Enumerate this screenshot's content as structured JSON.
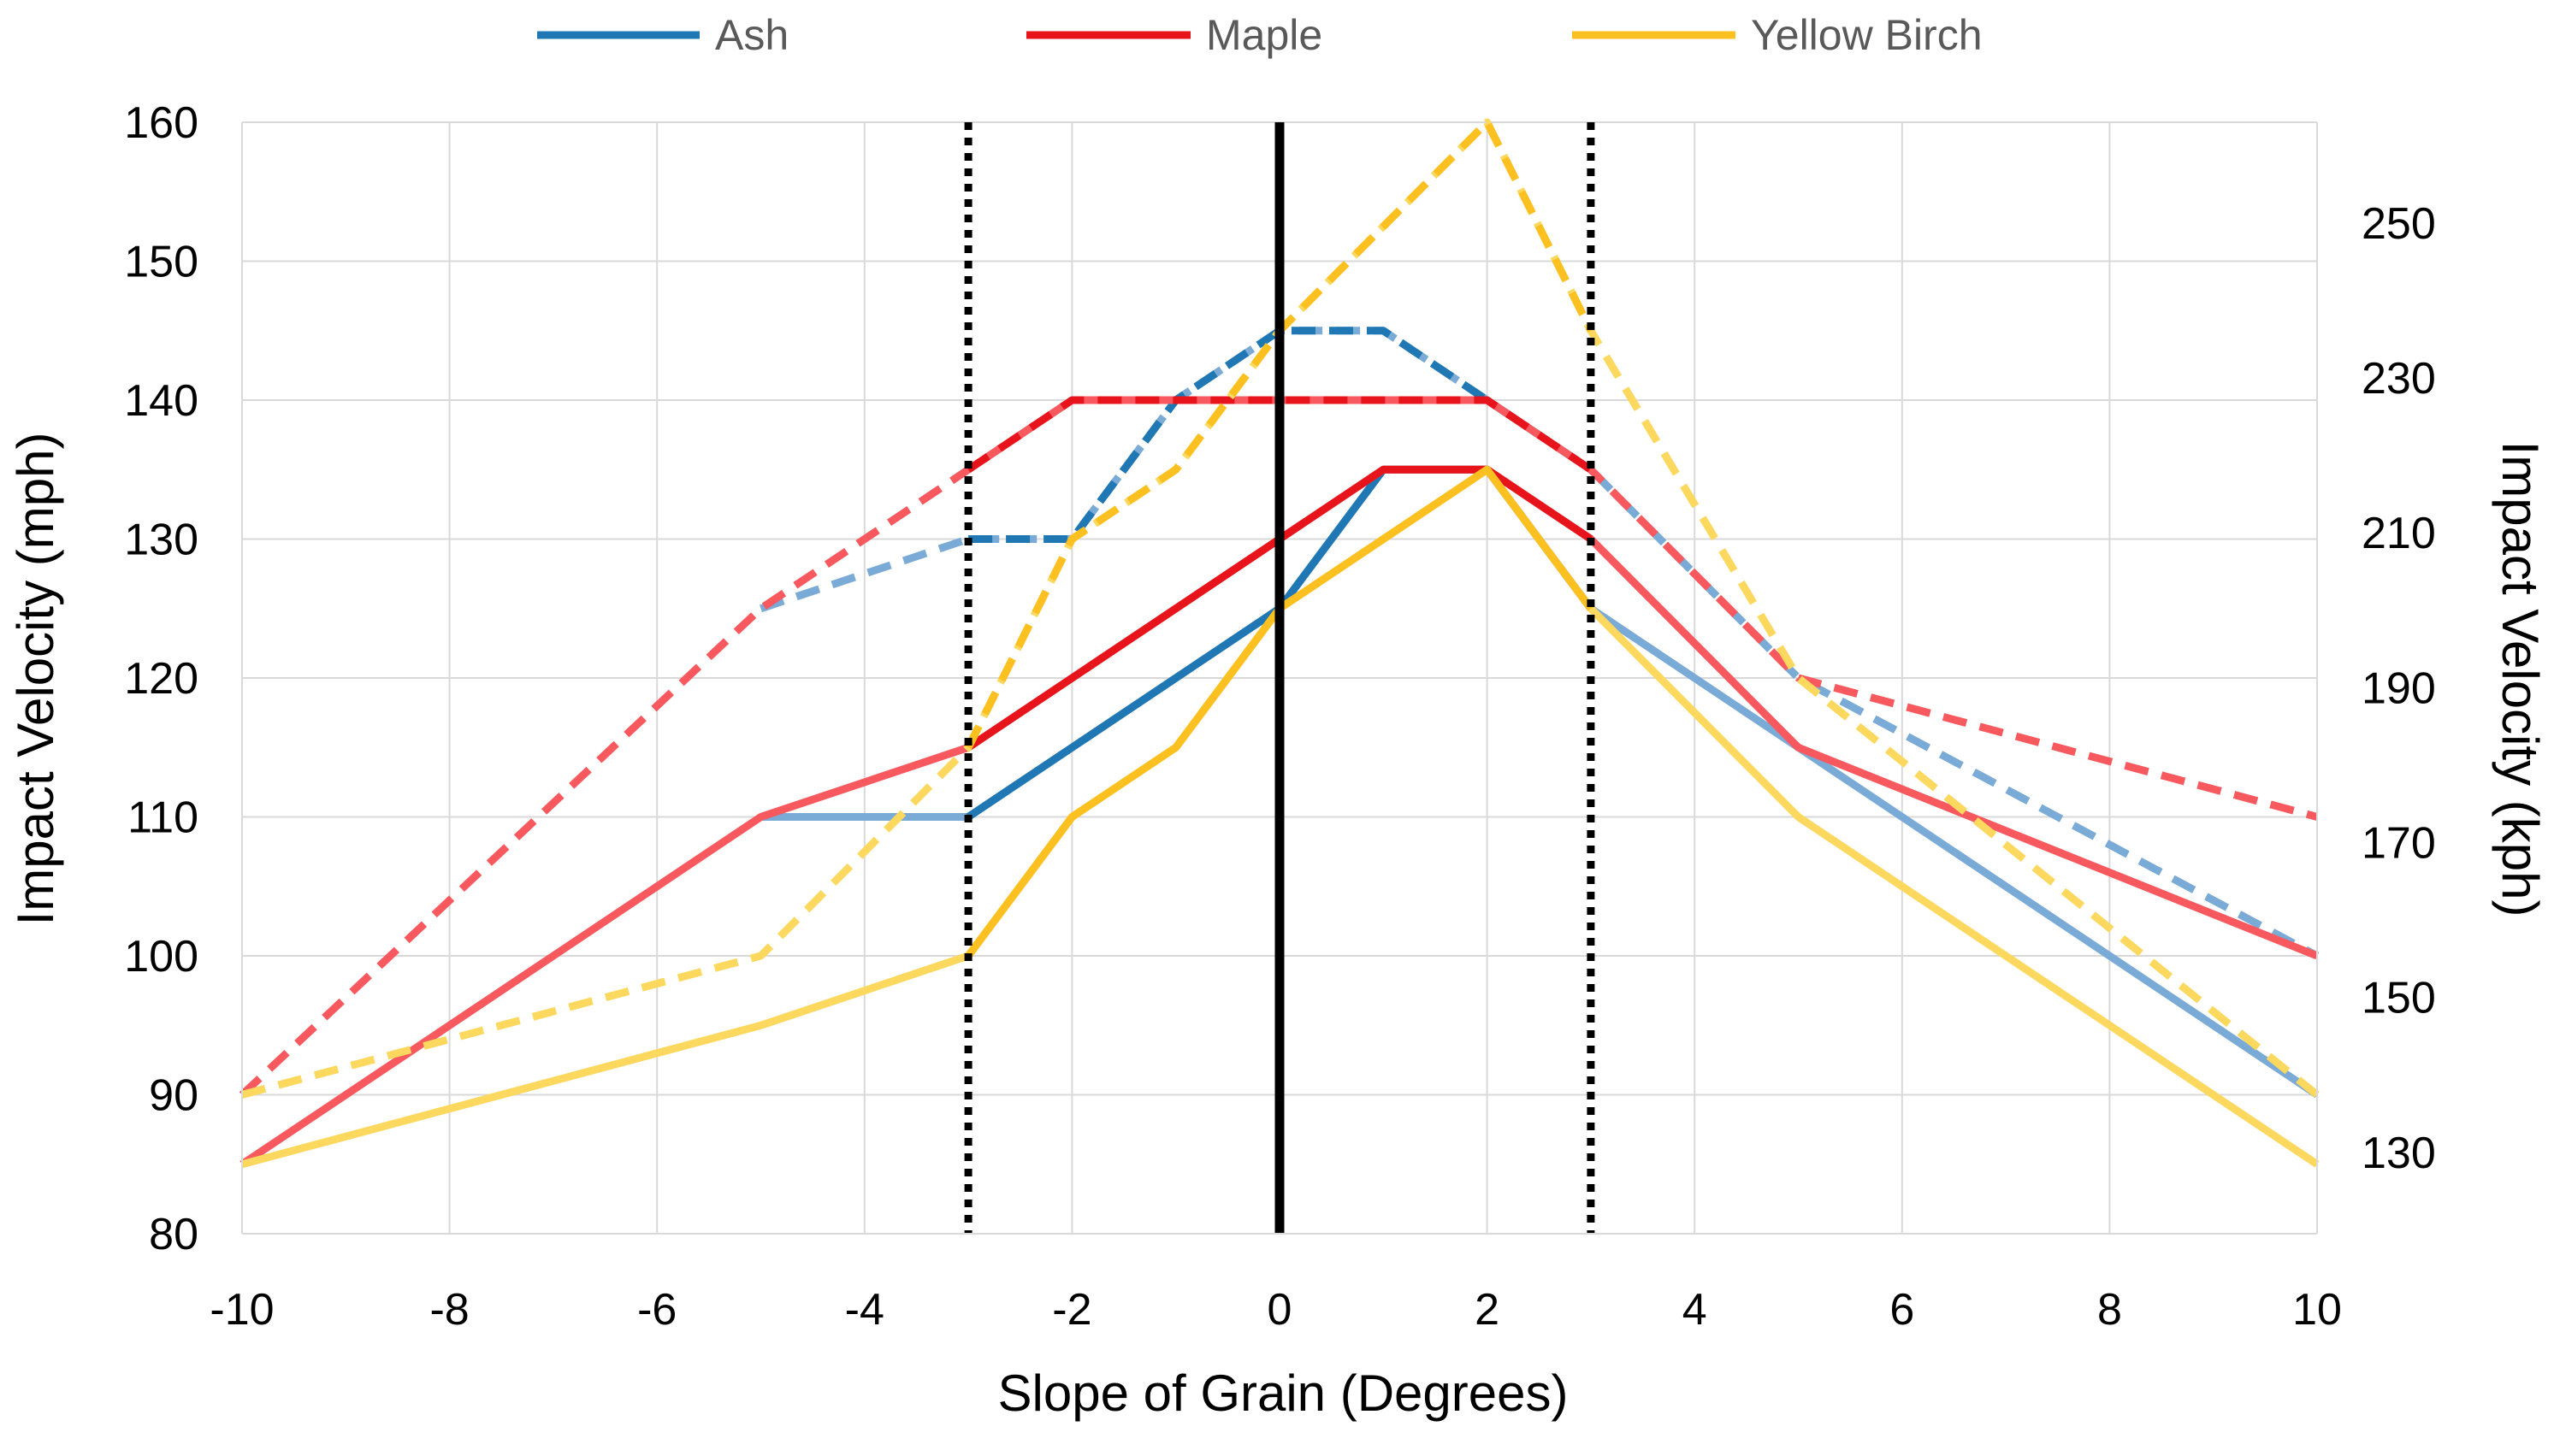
{
  "chart_data": {
    "type": "line",
    "title": "",
    "xlabel": "Slope of Grain (Degrees)",
    "ylabel": "Impact Velocity (mph)",
    "y2label": "Impact Velocity (kph)",
    "xlim": [
      -10,
      10
    ],
    "ylim": [
      80,
      160
    ],
    "y2lim": [
      119.5,
      263
    ],
    "x_ticks": [
      -10,
      -8,
      -6,
      -4,
      -2,
      0,
      2,
      4,
      6,
      8,
      10
    ],
    "x_tick_labels": [
      "-10",
      "-8",
      "-6",
      "-4",
      "-2",
      "0",
      "2",
      "4",
      "6",
      "8",
      "10"
    ],
    "y_ticks": [
      80,
      90,
      100,
      110,
      120,
      130,
      140,
      150,
      160
    ],
    "y_tick_labels": [
      "80",
      "90",
      "100",
      "110",
      "120",
      "130",
      "140",
      "150",
      "160"
    ],
    "y2_ticks": [
      130,
      150,
      170,
      190,
      210,
      230,
      250
    ],
    "y2_tick_labels": [
      "130",
      "150",
      "170",
      "190",
      "210",
      "230",
      "250"
    ],
    "grid": true,
    "legend_position": "top",
    "legend": [
      {
        "name": "Ash",
        "color": "#1f77b4"
      },
      {
        "name": "Maple",
        "color": "#e8141c"
      },
      {
        "name": "Yellow Birch",
        "color": "#fcc020"
      }
    ],
    "reference_lines": [
      {
        "x": -3,
        "style": "dotted",
        "color": "#000000"
      },
      {
        "x": 0,
        "style": "solid",
        "color": "#000000"
      },
      {
        "x": 3,
        "style": "dotted",
        "color": "#000000"
      }
    ],
    "series": [
      {
        "name": "Ash",
        "line": "solid",
        "color": "#1f77b4",
        "light_color": "#7aaad6",
        "x": [
          -5,
          -3,
          0,
          1,
          2,
          3,
          5,
          10
        ],
        "values": [
          110,
          110,
          125,
          135,
          135,
          125,
          115,
          90
        ]
      },
      {
        "name": "Ash",
        "line": "dashed",
        "color": "#1f77b4",
        "light_color": "#7aaad6",
        "x": [
          -5,
          -3,
          -2,
          -1,
          0,
          1,
          2,
          3,
          5,
          10
        ],
        "values": [
          125,
          130,
          130,
          140,
          145,
          145,
          140,
          135,
          120,
          100
        ]
      },
      {
        "name": "Maple",
        "line": "solid",
        "color": "#e8141c",
        "light_color": "#f8595e",
        "x": [
          -10,
          -5,
          -3,
          0,
          1,
          2,
          3,
          5,
          10
        ],
        "values": [
          85,
          110,
          115,
          130,
          135,
          135,
          130,
          115,
          100
        ]
      },
      {
        "name": "Maple",
        "line": "dashed",
        "color": "#e8141c",
        "light_color": "#f8595e",
        "x": [
          -10,
          -5,
          -3,
          -2,
          0,
          2,
          3,
          5,
          10
        ],
        "values": [
          90,
          125,
          135,
          140,
          140,
          140,
          135,
          120,
          110
        ]
      },
      {
        "name": "Yellow Birch",
        "line": "solid",
        "color": "#fcc020",
        "light_color": "#fcd85e",
        "x": [
          -10,
          -5,
          -3,
          -2,
          -1,
          0,
          2,
          3,
          5,
          10
        ],
        "values": [
          85,
          95,
          100,
          110,
          115,
          125,
          135,
          125,
          110,
          85
        ]
      },
      {
        "name": "Yellow Birch",
        "line": "dashed",
        "color": "#fcc020",
        "light_color": "#fcd85e",
        "x": [
          -10,
          -5,
          -3,
          -2,
          -1,
          0,
          2,
          3,
          5,
          10
        ],
        "values": [
          90,
          100,
          115,
          130,
          135,
          145,
          160,
          145,
          120,
          90
        ]
      }
    ]
  }
}
